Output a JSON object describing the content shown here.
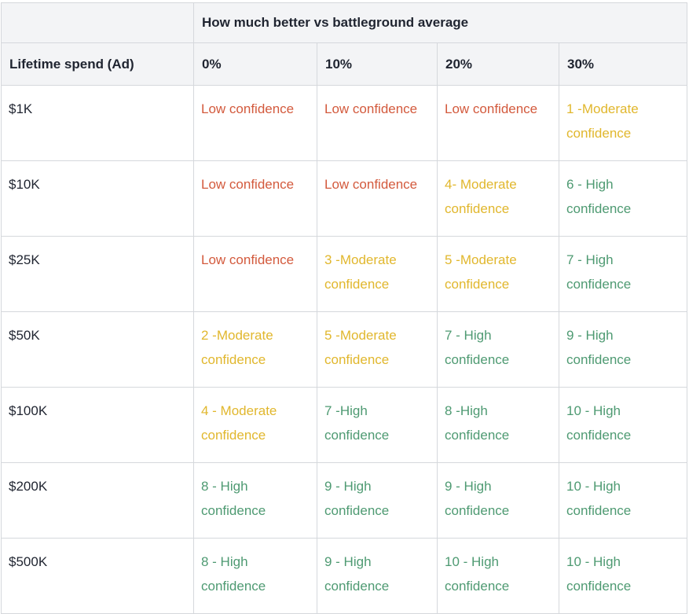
{
  "table": {
    "group_header": "How much better vs battleground average",
    "row_header": "Lifetime spend (Ad)",
    "columns": [
      "0%",
      "10%",
      "20%",
      "30%"
    ],
    "rows": [
      {
        "label": "$1K",
        "cells": [
          {
            "text": "Low confidence",
            "level": "low"
          },
          {
            "text": "Low confidence",
            "level": "low"
          },
          {
            "text": "Low confidence",
            "level": "low"
          },
          {
            "text": "1 -Moderate confidence",
            "level": "moderate"
          }
        ]
      },
      {
        "label": "$10K",
        "cells": [
          {
            "text": "Low confidence",
            "level": "low"
          },
          {
            "text": "Low confidence",
            "level": "low"
          },
          {
            "text": "4- Moderate confidence",
            "level": "moderate"
          },
          {
            "text": "6 - High confidence",
            "level": "high"
          }
        ]
      },
      {
        "label": "$25K",
        "cells": [
          {
            "text": "Low confidence",
            "level": "low"
          },
          {
            "text": "3 -Moderate confidence",
            "level": "moderate"
          },
          {
            "text": "5 -Moderate confidence",
            "level": "moderate"
          },
          {
            "text": "7 - High confidence",
            "level": "high"
          }
        ]
      },
      {
        "label": "$50K",
        "cells": [
          {
            "text": "2 -Moderate confidence",
            "level": "moderate"
          },
          {
            "text": "5 -Moderate confidence",
            "level": "moderate"
          },
          {
            "text": "7 - High confidence",
            "level": "high"
          },
          {
            "text": "9 - High confidence",
            "level": "high"
          }
        ]
      },
      {
        "label": "$100K",
        "cells": [
          {
            "text": "4 - Moderate confidence",
            "level": "moderate"
          },
          {
            "text": "7 -High confidence",
            "level": "high"
          },
          {
            "text": "8 -High confidence",
            "level": "high"
          },
          {
            "text": "10 - High confidence",
            "level": "high"
          }
        ]
      },
      {
        "label": "$200K",
        "cells": [
          {
            "text": "8 - High confidence",
            "level": "high"
          },
          {
            "text": "9 - High confidence",
            "level": "high"
          },
          {
            "text": "9 - High confidence",
            "level": "high"
          },
          {
            "text": "10 - High confidence",
            "level": "high"
          }
        ]
      },
      {
        "label": "$500K",
        "cells": [
          {
            "text": "8 - High confidence",
            "level": "high"
          },
          {
            "text": "9 - High confidence",
            "level": "high"
          },
          {
            "text": "10 - High confidence",
            "level": "high"
          },
          {
            "text": "10 - High confidence",
            "level": "high"
          }
        ]
      }
    ]
  },
  "colors": {
    "low": "#d35a3d",
    "moderate": "#e1b72d",
    "high": "#4e9a72",
    "header_bg": "#f3f4f6",
    "border": "#d5d8dc"
  }
}
